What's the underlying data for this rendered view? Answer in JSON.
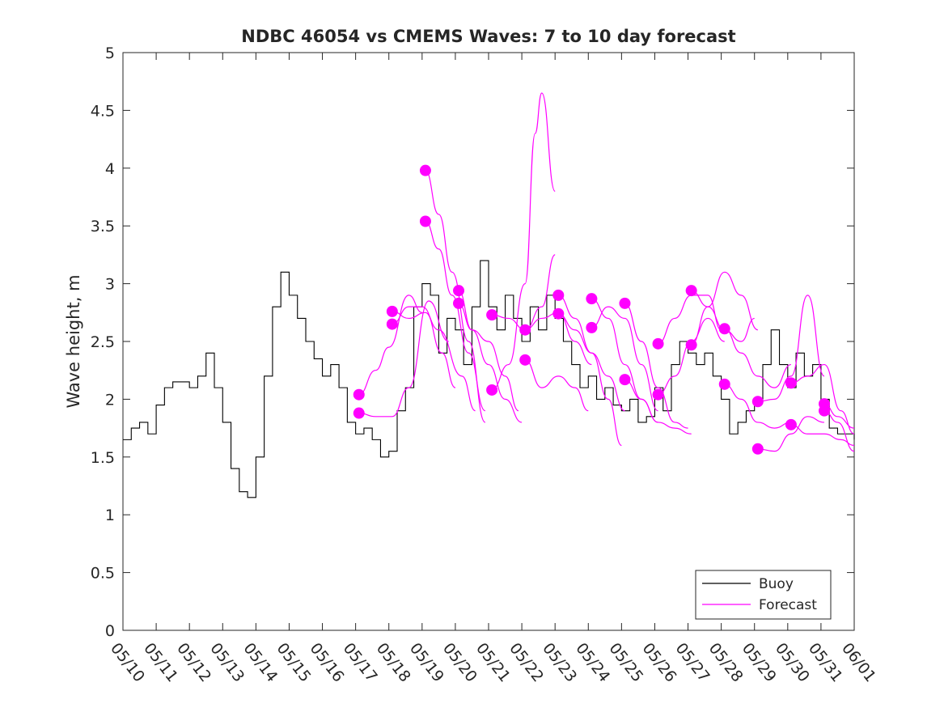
{
  "chart_data": {
    "type": "line",
    "title": "NDBC 46054 vs CMEMS Waves: 7 to 10 day forecast",
    "xlabel": "",
    "ylabel": "Wave height, m",
    "xlim": [
      "05/10",
      "06/01"
    ],
    "ylim": [
      0,
      5
    ],
    "x_tick_labels": [
      "05/10",
      "05/11",
      "05/12",
      "05/13",
      "05/14",
      "05/15",
      "05/16",
      "05/17",
      "05/18",
      "05/19",
      "05/20",
      "05/21",
      "05/22",
      "05/23",
      "05/24",
      "05/25",
      "05/26",
      "05/27",
      "05/28",
      "05/29",
      "05/30",
      "05/31",
      "06/01"
    ],
    "y_tick_labels": [
      "0",
      "0.5",
      "1",
      "1.5",
      "2",
      "2.5",
      "3",
      "3.5",
      "4",
      "4.5",
      "5"
    ],
    "grid": false,
    "legend": {
      "position": "bottom-right",
      "entries": [
        "Buoy",
        "Forecast"
      ]
    },
    "colors": {
      "buoy": "#000000",
      "forecast": "#ff00ff"
    },
    "series": [
      {
        "name": "Buoy",
        "style": "line",
        "x_day_of_may": [
          10.0,
          10.25,
          10.5,
          10.75,
          11.0,
          11.25,
          11.5,
          11.75,
          12.0,
          12.25,
          12.5,
          12.75,
          13.0,
          13.25,
          13.5,
          13.75,
          14.0,
          14.25,
          14.5,
          14.75,
          15.0,
          15.25,
          15.5,
          15.75,
          16.0,
          16.25,
          16.5,
          16.75,
          17.0,
          17.25,
          17.5,
          17.75,
          18.0,
          18.25,
          18.5,
          18.75,
          19.0,
          19.25,
          19.5,
          19.75,
          20.0,
          20.25,
          20.5,
          20.75,
          21.0,
          21.25,
          21.5,
          21.75,
          22.0,
          22.25,
          22.5,
          22.75,
          23.0,
          23.25,
          23.5,
          23.75,
          24.0,
          24.25,
          24.5,
          24.75,
          25.0,
          25.25,
          25.5,
          25.75,
          26.0,
          26.25,
          26.5,
          26.75,
          27.0,
          27.25,
          27.5,
          27.75,
          28.0,
          28.25,
          28.5,
          28.75,
          29.0,
          29.25,
          29.5,
          29.75,
          30.0,
          30.25,
          30.5,
          30.75,
          31.0,
          31.25,
          31.5,
          31.75,
          32.0
        ],
        "values": [
          1.65,
          1.75,
          1.8,
          1.7,
          1.95,
          2.1,
          2.15,
          2.15,
          2.1,
          2.2,
          2.4,
          2.1,
          1.8,
          1.4,
          1.2,
          1.15,
          1.5,
          2.2,
          2.8,
          3.1,
          2.9,
          2.7,
          2.5,
          2.35,
          2.2,
          2.3,
          2.1,
          1.8,
          1.7,
          1.75,
          1.65,
          1.5,
          1.55,
          1.9,
          2.1,
          2.8,
          3.0,
          2.9,
          2.4,
          2.7,
          2.6,
          2.3,
          2.8,
          3.2,
          2.8,
          2.6,
          2.9,
          2.7,
          2.5,
          2.8,
          2.6,
          2.9,
          2.7,
          2.5,
          2.3,
          2.1,
          2.2,
          2.0,
          2.1,
          1.95,
          1.9,
          2.0,
          1.8,
          1.85,
          2.1,
          1.9,
          2.3,
          2.5,
          2.4,
          2.3,
          2.4,
          2.2,
          2.0,
          1.7,
          1.8,
          1.9,
          2.0,
          2.3,
          2.6,
          2.3,
          2.1,
          2.4,
          2.2,
          2.3,
          2.0,
          1.75,
          1.7,
          1.7,
          1.65
        ]
      },
      {
        "name": "Forecast",
        "style": "lines-with-start-markers",
        "forecasts": [
          {
            "x": [
              17.1,
              17.6,
              18.0,
              18.6,
              19.0
            ],
            "y": [
              2.04,
              2.25,
              2.45,
              2.9,
              2.75
            ]
          },
          {
            "x": [
              17.1,
              17.6,
              18.1,
              18.6,
              19.2,
              19.8
            ],
            "y": [
              1.88,
              1.85,
              1.85,
              2.1,
              2.85,
              2.5
            ]
          },
          {
            "x": [
              18.1,
              18.6,
              19.1,
              19.6,
              20.0
            ],
            "y": [
              2.76,
              2.7,
              2.75,
              2.4,
              2.1
            ]
          },
          {
            "x": [
              18.1,
              18.6,
              19.0,
              19.5,
              20.2,
              20.6
            ],
            "y": [
              2.65,
              2.8,
              2.8,
              2.6,
              2.2,
              1.9
            ]
          },
          {
            "x": [
              19.1,
              19.5,
              19.9,
              20.4,
              20.9
            ],
            "y": [
              3.98,
              3.6,
              3.1,
              2.5,
              1.8
            ]
          },
          {
            "x": [
              19.1,
              19.5,
              19.9,
              20.4,
              20.9
            ],
            "y": [
              3.54,
              3.3,
              2.9,
              2.4,
              1.9
            ]
          },
          {
            "x": [
              20.1,
              20.5,
              21.0,
              21.5,
              22.0
            ],
            "y": [
              2.94,
              2.6,
              2.3,
              2.0,
              1.8
            ]
          },
          {
            "x": [
              20.1,
              20.5,
              21.0,
              21.5,
              21.9
            ],
            "y": [
              2.83,
              2.6,
              2.5,
              2.2,
              1.9
            ]
          },
          {
            "x": [
              21.1,
              21.6,
              22.1,
              22.4,
              22.6,
              23.0
            ],
            "y": [
              2.08,
              2.3,
              3.0,
              4.3,
              4.65,
              3.8
            ]
          },
          {
            "x": [
              21.1,
              21.6,
              22.1,
              22.6,
              23.0
            ],
            "y": [
              2.73,
              2.7,
              2.6,
              2.8,
              3.25
            ]
          },
          {
            "x": [
              22.1,
              22.6,
              23.1,
              23.6,
              24.1
            ],
            "y": [
              2.6,
              2.7,
              2.75,
              2.5,
              2.3
            ]
          },
          {
            "x": [
              22.1,
              22.6,
              23.1,
              23.6,
              24.0
            ],
            "y": [
              2.34,
              2.1,
              2.2,
              2.1,
              1.9
            ]
          },
          {
            "x": [
              23.1,
              23.6,
              24.1,
              24.6,
              25.0
            ],
            "y": [
              2.9,
              2.7,
              2.4,
              2.0,
              1.6
            ]
          },
          {
            "x": [
              23.1,
              23.6,
              24.1,
              24.6,
              25.1
            ],
            "y": [
              2.74,
              2.6,
              2.4,
              2.2,
              1.9
            ]
          },
          {
            "x": [
              24.1,
              24.6,
              25.1,
              25.6,
              26.1
            ],
            "y": [
              2.87,
              2.7,
              2.3,
              2.0,
              1.8
            ]
          },
          {
            "x": [
              24.1,
              24.6,
              25.1,
              25.6,
              26.1
            ],
            "y": [
              2.62,
              2.8,
              2.7,
              2.3,
              1.9
            ]
          },
          {
            "x": [
              25.1,
              25.6,
              26.1,
              26.6,
              27.0
            ],
            "y": [
              2.83,
              2.5,
              2.1,
              1.8,
              1.75
            ]
          },
          {
            "x": [
              25.1,
              25.6,
              26.1,
              26.6,
              27.1
            ],
            "y": [
              2.17,
              2.0,
              1.8,
              1.75,
              1.7
            ]
          },
          {
            "x": [
              26.1,
              26.6,
              27.1,
              27.6,
              28.0
            ],
            "y": [
              2.48,
              2.7,
              2.9,
              2.9,
              2.6
            ]
          },
          {
            "x": [
              26.1,
              26.6,
              27.1,
              27.6,
              28.1
            ],
            "y": [
              2.04,
              2.2,
              2.5,
              2.7,
              2.5
            ]
          },
          {
            "x": [
              27.1,
              27.6,
              28.1,
              28.6,
              29.0
            ],
            "y": [
              2.94,
              2.8,
              2.6,
              2.5,
              2.7
            ]
          },
          {
            "x": [
              27.1,
              27.6,
              28.1,
              28.6,
              29.1
            ],
            "y": [
              2.47,
              2.8,
              3.1,
              2.9,
              2.6
            ]
          },
          {
            "x": [
              28.1,
              28.6,
              29.1,
              29.6,
              30.1
            ],
            "y": [
              2.61,
              2.4,
              2.2,
              2.1,
              2.3
            ]
          },
          {
            "x": [
              28.1,
              28.6,
              29.1,
              29.6,
              30.1
            ],
            "y": [
              2.13,
              2.0,
              1.8,
              1.75,
              1.8
            ]
          },
          {
            "x": [
              29.1,
              29.6,
              30.1,
              30.6,
              31.1
            ],
            "y": [
              1.98,
              2.0,
              2.2,
              2.9,
              2.2
            ]
          },
          {
            "x": [
              29.1,
              29.6,
              30.1,
              30.6,
              31.1
            ],
            "y": [
              1.57,
              1.55,
              1.7,
              1.85,
              1.8
            ]
          },
          {
            "x": [
              30.1,
              30.6,
              31.1,
              31.6,
              32.0
            ],
            "y": [
              2.14,
              2.2,
              2.3,
              1.9,
              1.7
            ]
          },
          {
            "x": [
              30.1,
              30.6,
              31.1,
              31.6,
              32.0
            ],
            "y": [
              1.78,
              1.7,
              1.7,
              1.65,
              1.6
            ]
          },
          {
            "x": [
              31.1,
              31.5,
              32.0
            ],
            "y": [
              1.96,
              1.85,
              1.75
            ]
          },
          {
            "x": [
              31.1,
              31.5,
              32.0
            ],
            "y": [
              1.9,
              1.8,
              1.55
            ]
          }
        ]
      }
    ]
  }
}
